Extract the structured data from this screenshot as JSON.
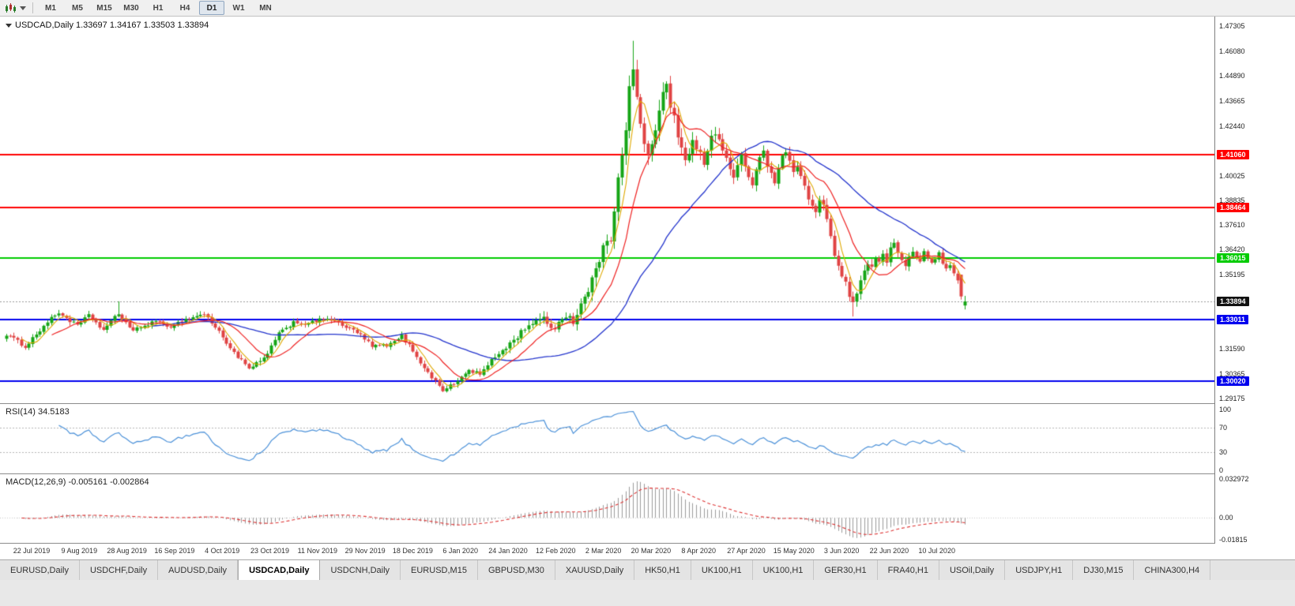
{
  "toolbar": {
    "timeframes": [
      "M1",
      "M5",
      "M15",
      "M30",
      "H1",
      "H4",
      "D1",
      "W1",
      "MN"
    ],
    "active_timeframe": "D1"
  },
  "chart_header": {
    "symbol": "USDCAD,Daily",
    "open": "1.33697",
    "high": "1.34167",
    "low": "1.33503",
    "close": "1.33894",
    "text": "USDCAD,Daily 1.33697 1.34167 1.33503 1.33894"
  },
  "indicators": {
    "rsi": {
      "label": "RSI(14) 34.5183",
      "period": 14,
      "value": "34.5183",
      "axis_labels": [
        "100",
        "70",
        "30",
        "0"
      ],
      "levels": [
        70,
        30
      ],
      "color": "#4a90d8"
    },
    "macd": {
      "label": "MACD(12,26,9) -0.005161 -0.002864",
      "fast": 12,
      "slow": 26,
      "signal": 9,
      "values": [
        "-0.005161",
        "-0.002864"
      ],
      "axis_labels": [
        {
          "text": "0.032972",
          "value": 0.032972
        },
        {
          "text": "0.00",
          "value": 0.0
        },
        {
          "text": "-0.01815",
          "value": -0.01815
        }
      ],
      "hist_color": "#9a9a9a",
      "signal_color": "#dd3333"
    }
  },
  "price_axis": {
    "labels": [
      "1.47305",
      "1.46080",
      "1.44890",
      "1.43665",
      "1.42440",
      "1.40025",
      "1.38835",
      "1.37610",
      "1.36420",
      "1.35195",
      "1.31590",
      "1.30365",
      "1.29175"
    ]
  },
  "hlines": [
    {
      "price": 1.4106,
      "label": "1.41060",
      "color": "#ff0000"
    },
    {
      "price": 1.38464,
      "label": "1.38464",
      "color": "#ff0000"
    },
    {
      "price": 1.36015,
      "label": "1.36015",
      "color": "#00cc00"
    },
    {
      "price": 1.33011,
      "label": "1.33011",
      "color": "#0000ee"
    },
    {
      "price": 1.3002,
      "label": "1.30020",
      "color": "#0000ee"
    }
  ],
  "current_price": {
    "value": 1.33894,
    "label": "1.33894",
    "tag_color": "#111111"
  },
  "date_axis": [
    "22 Jul 2019",
    "9 Aug 2019",
    "28 Aug 2019",
    "16 Sep 2019",
    "4 Oct 2019",
    "23 Oct 2019",
    "11 Nov 2019",
    "29 Nov 2019",
    "18 Dec 2019",
    "6 Jan 2020",
    "24 Jan 2020",
    "12 Feb 2020",
    "2 Mar 2020",
    "20 Mar 2020",
    "8 Apr 2020",
    "27 Apr 2020",
    "15 May 2020",
    "3 Jun 2020",
    "22 Jun 2020",
    "10 Jul 2020"
  ],
  "tabs": {
    "items": [
      "EURUSD,Daily",
      "USDCHF,Daily",
      "AUDUSD,Daily",
      "USDCAD,Daily",
      "USDCNH,Daily",
      "EURUSD,M15",
      "GBPUSD,M30",
      "XAUUSD,Daily",
      "HK50,H1",
      "UK100,H1",
      "UK100,H1",
      "GER30,H1",
      "FRA40,H1",
      "USOil,Daily",
      "USDJPY,H1",
      "DJ30,M15",
      "CHINA300,H4"
    ],
    "active_index": 3
  },
  "colors": {
    "candle_up": "#16a516",
    "candle_down": "#e04343",
    "ma_fast_yellow": "#dfa800",
    "ma_mid_red": "#ee2222",
    "ma_slow_blue": "#2233cc",
    "current_price_line": "#999999",
    "rsi_level_line": "#b3b3b3"
  },
  "chart_data": {
    "type": "candlestick",
    "symbol": "USDCAD",
    "timeframe": "Daily",
    "n_candles": 258,
    "ylim": [
      1.2893,
      1.4778
    ],
    "last_candle_ohlc": {
      "o": 1.33697,
      "h": 1.34167,
      "l": 1.33503,
      "c": 1.33894
    },
    "moving_averages": [
      {
        "name": "fast",
        "period": 5,
        "color": "#dfa800"
      },
      {
        "name": "mid",
        "period": 13,
        "color": "#ee2222"
      },
      {
        "name": "slow",
        "period": 40,
        "color": "#2233cc"
      }
    ],
    "close_anchors": [
      [
        0,
        1.323
      ],
      [
        5,
        1.317
      ],
      [
        11,
        1.329
      ],
      [
        14,
        1.3335
      ],
      [
        19,
        1.327
      ],
      [
        22,
        1.332
      ],
      [
        26,
        1.325
      ],
      [
        30,
        1.333
      ],
      [
        34,
        1.3245
      ],
      [
        39,
        1.329
      ],
      [
        44,
        1.327
      ],
      [
        48,
        1.33
      ],
      [
        53,
        1.333
      ],
      [
        57,
        1.324
      ],
      [
        61,
        1.314
      ],
      [
        65,
        1.306
      ],
      [
        69,
        1.311
      ],
      [
        73,
        1.323
      ],
      [
        77,
        1.329
      ],
      [
        81,
        1.328
      ],
      [
        86,
        1.331
      ],
      [
        90,
        1.327
      ],
      [
        94,
        1.324
      ],
      [
        98,
        1.317
      ],
      [
        103,
        1.318
      ],
      [
        106,
        1.322
      ],
      [
        109,
        1.315
      ],
      [
        113,
        1.304
      ],
      [
        117,
        1.296
      ],
      [
        120,
        1.2985
      ],
      [
        124,
        1.3055
      ],
      [
        127,
        1.3035
      ],
      [
        131,
        1.312
      ],
      [
        136,
        1.32
      ],
      [
        140,
        1.328
      ],
      [
        144,
        1.33
      ],
      [
        147,
        1.326
      ],
      [
        150,
        1.333
      ],
      [
        152,
        1.329
      ],
      [
        154,
        1.338
      ],
      [
        156,
        1.343
      ],
      [
        158,
        1.356
      ],
      [
        160,
        1.364
      ],
      [
        162,
        1.37
      ],
      [
        164,
        1.4
      ],
      [
        165,
        1.412
      ],
      [
        166,
        1.425
      ],
      [
        167,
        1.442
      ],
      [
        168,
        1.452
      ],
      [
        169,
        1.438
      ],
      [
        170,
        1.425
      ],
      [
        171,
        1.415
      ],
      [
        172,
        1.409
      ],
      [
        173,
        1.417
      ],
      [
        174,
        1.424
      ],
      [
        175,
        1.431
      ],
      [
        176,
        1.44
      ],
      [
        177,
        1.443
      ],
      [
        178,
        1.433
      ],
      [
        179,
        1.428
      ],
      [
        180,
        1.42
      ],
      [
        181,
        1.415
      ],
      [
        182,
        1.409
      ],
      [
        183,
        1.412
      ],
      [
        184,
        1.418
      ],
      [
        185,
        1.415
      ],
      [
        186,
        1.41
      ],
      [
        187,
        1.406
      ],
      [
        188,
        1.413
      ],
      [
        189,
        1.418
      ],
      [
        190,
        1.422
      ],
      [
        191,
        1.418
      ],
      [
        192,
        1.412
      ],
      [
        193,
        1.408
      ],
      [
        194,
        1.403
      ],
      [
        195,
        1.399
      ],
      [
        196,
        1.406
      ],
      [
        197,
        1.411
      ],
      [
        198,
        1.406
      ],
      [
        199,
        1.399
      ],
      [
        200,
        1.395
      ],
      [
        201,
        1.402
      ],
      [
        202,
        1.408
      ],
      [
        203,
        1.412
      ],
      [
        204,
        1.406
      ],
      [
        205,
        1.402
      ],
      [
        206,
        1.398
      ],
      [
        207,
        1.404
      ],
      [
        208,
        1.409
      ],
      [
        209,
        1.413
      ],
      [
        210,
        1.408
      ],
      [
        211,
        1.402
      ],
      [
        212,
        1.406
      ],
      [
        213,
        1.399
      ],
      [
        214,
        1.394
      ],
      [
        215,
        1.39
      ],
      [
        216,
        1.387
      ],
      [
        217,
        1.383
      ],
      [
        218,
        1.389
      ],
      [
        219,
        1.385
      ],
      [
        220,
        1.379
      ],
      [
        221,
        1.37
      ],
      [
        222,
        1.362
      ],
      [
        223,
        1.356
      ],
      [
        224,
        1.35
      ],
      [
        225,
        1.347
      ],
      [
        226,
        1.342
      ],
      [
        227,
        1.339
      ],
      [
        228,
        1.343
      ],
      [
        229,
        1.349
      ],
      [
        230,
        1.354
      ],
      [
        231,
        1.358
      ],
      [
        232,
        1.355
      ],
      [
        233,
        1.36
      ],
      [
        234,
        1.357
      ],
      [
        235,
        1.362
      ],
      [
        236,
        1.359
      ],
      [
        237,
        1.364
      ],
      [
        238,
        1.368
      ],
      [
        239,
        1.362
      ],
      [
        240,
        1.358
      ],
      [
        241,
        1.355
      ],
      [
        242,
        1.36
      ],
      [
        243,
        1.364
      ],
      [
        244,
        1.361
      ],
      [
        245,
        1.358
      ],
      [
        246,
        1.363
      ],
      [
        247,
        1.36
      ],
      [
        248,
        1.357
      ],
      [
        249,
        1.36
      ],
      [
        250,
        1.362
      ],
      [
        251,
        1.358
      ],
      [
        252,
        1.355
      ],
      [
        253,
        1.356
      ],
      [
        254,
        1.353
      ],
      [
        255,
        1.35
      ],
      [
        256,
        1.342
      ],
      [
        257,
        1.33894
      ]
    ],
    "overrides": {
      "30": {
        "h": 1.339
      },
      "168": {
        "h": 1.466
      },
      "227": {
        "l": 1.3316
      },
      "256": {
        "o": 1.352
      },
      "257": {
        "o": 1.33697,
        "h": 1.34167,
        "l": 1.33503,
        "c": 1.33894
      }
    }
  }
}
